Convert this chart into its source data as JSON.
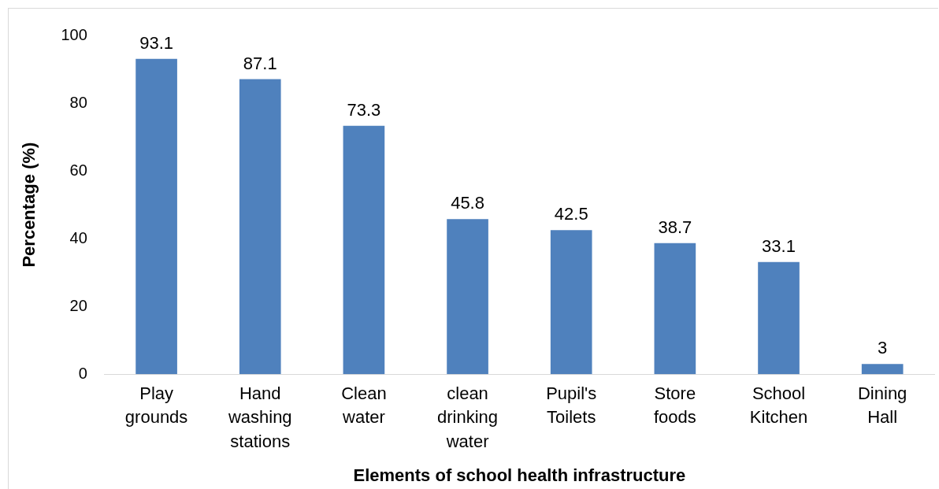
{
  "chart_data": {
    "type": "bar",
    "xlabel": "Elements of school health infrastructure",
    "ylabel": "Percentage (%)",
    "categories": [
      "Play grounds",
      "Hand washing stations",
      "Clean water",
      "clean drinking water",
      "Pupil's Toilets",
      "Store foods",
      "School Kitchen",
      "Dining Hall"
    ],
    "values": [
      93.1,
      87.1,
      73.3,
      45.8,
      42.5,
      38.7,
      33.1,
      3
    ],
    "color": "#4f81bd",
    "ylim": [
      0,
      100
    ],
    "yticks": [
      0,
      20,
      40,
      60,
      80,
      100
    ],
    "grid": false,
    "legend": false,
    "data_labels": true
  }
}
